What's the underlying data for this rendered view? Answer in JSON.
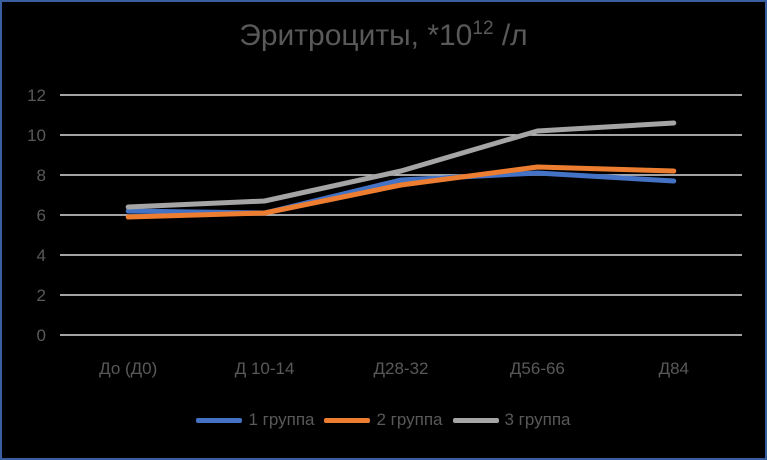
{
  "chart_data": {
    "type": "line",
    "title": "Эритроциты, *10^12 /л",
    "title_main": "Эритроциты, *10",
    "title_sup": "12",
    "title_tail": " /л",
    "xlabel": "",
    "ylabel": "",
    "categories": [
      "До (Д0)",
      "Д 10-14",
      "Д28-32",
      "Д56-66",
      "Д84"
    ],
    "yticks": [
      0,
      2,
      4,
      6,
      8,
      10,
      12
    ],
    "ylim": [
      0,
      12
    ],
    "grid": true,
    "legend_position": "bottom",
    "series": [
      {
        "name": "1 группа",
        "color": "#4472c4",
        "values": [
          6.2,
          6.1,
          7.75,
          8.1,
          7.7
        ]
      },
      {
        "name": "2 группа",
        "color": "#ed7d31",
        "values": [
          5.9,
          6.1,
          7.5,
          8.4,
          8.2
        ]
      },
      {
        "name": "3 группа",
        "color": "#a5a5a5",
        "values": [
          6.4,
          6.7,
          8.2,
          10.2,
          10.6
        ]
      }
    ]
  },
  "colors": {
    "background": "#000000",
    "border": "#3a5fa0",
    "gridline": "#d9d9d9",
    "text": "#595959"
  }
}
